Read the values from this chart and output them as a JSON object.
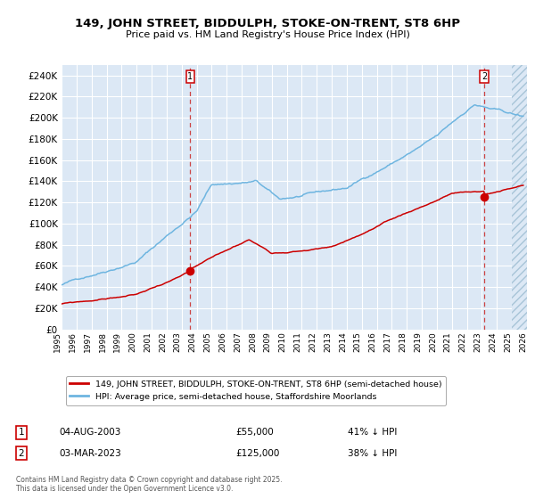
{
  "title": "149, JOHN STREET, BIDDULPH, STOKE-ON-TRENT, ST8 6HP",
  "subtitle": "Price paid vs. HM Land Registry's House Price Index (HPI)",
  "plot_bg_color": "#dce8f5",
  "red_line_color": "#cc0000",
  "blue_line_color": "#6eb5e0",
  "dashed_line_color": "#cc4444",
  "grid_color": "#ffffff",
  "ylim": [
    0,
    250000
  ],
  "yticks": [
    0,
    20000,
    40000,
    60000,
    80000,
    100000,
    120000,
    140000,
    160000,
    180000,
    200000,
    220000,
    240000
  ],
  "sale1_date": "04-AUG-2003",
  "sale1_price": 55000,
  "sale1_label": "41% ↓ HPI",
  "sale1_year": 2003.58,
  "sale2_date": "03-MAR-2023",
  "sale2_price": 125000,
  "sale2_label": "38% ↓ HPI",
  "sale2_year": 2023.17,
  "legend_line1": "149, JOHN STREET, BIDDULPH, STOKE-ON-TRENT, ST8 6HP (semi-detached house)",
  "legend_line2": "HPI: Average price, semi-detached house, Staffordshire Moorlands",
  "footnote": "Contains HM Land Registry data © Crown copyright and database right 2025.\nThis data is licensed under the Open Government Licence v3.0.",
  "xmin": 1995,
  "xmax": 2026,
  "hatch_start": 2025.0
}
